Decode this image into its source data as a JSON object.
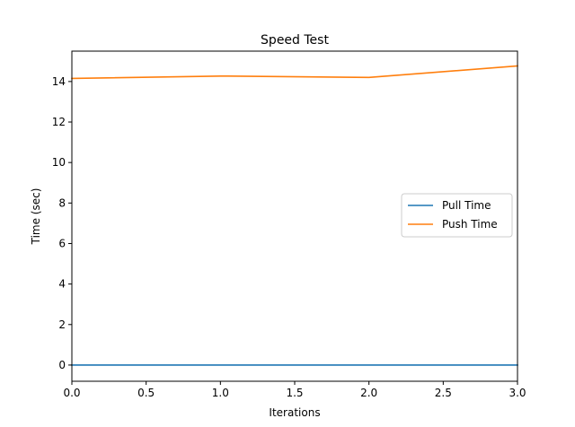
{
  "chart_data": {
    "type": "line",
    "title": "Speed Test",
    "xlabel": "Iterations",
    "ylabel": "Time (sec)",
    "x": [
      0,
      1,
      2,
      3
    ],
    "xlim": [
      0,
      3
    ],
    "ylim": [
      -0.8,
      15.5
    ],
    "xticks": [
      0.0,
      0.5,
      1.0,
      1.5,
      2.0,
      2.5,
      3.0
    ],
    "xtick_labels": [
      "0.0",
      "0.5",
      "1.0",
      "1.5",
      "2.0",
      "2.5",
      "3.0"
    ],
    "yticks": [
      0,
      2,
      4,
      6,
      8,
      10,
      12,
      14
    ],
    "ytick_labels": [
      "0",
      "2",
      "4",
      "6",
      "8",
      "10",
      "12",
      "14"
    ],
    "grid": false,
    "legend_position": "center-right",
    "series": [
      {
        "name": "Pull Time",
        "color": "#1f77b4",
        "values": [
          0.0,
          0.0,
          0.0,
          0.0
        ]
      },
      {
        "name": "Push Time",
        "color": "#ff7f0e",
        "values": [
          14.15,
          14.27,
          14.2,
          14.77
        ]
      }
    ]
  }
}
